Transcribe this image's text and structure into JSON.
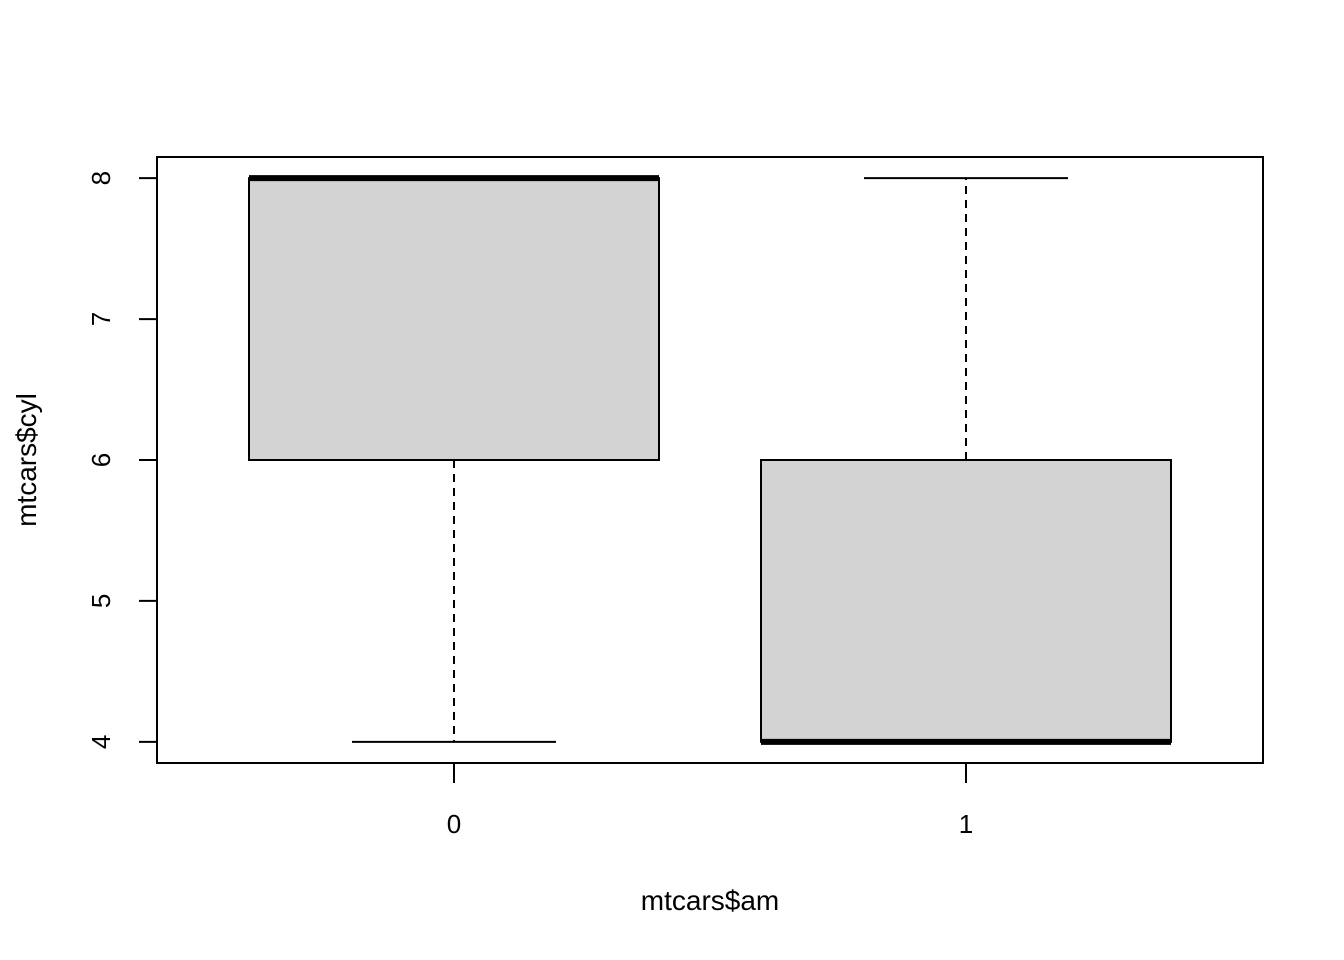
{
  "chart_data": {
    "type": "box",
    "xlabel": "mtcars$am",
    "ylabel": "mtcars$cyl",
    "ylim": [
      3.85,
      8.15
    ],
    "y_ticks": [
      4,
      5,
      6,
      7,
      8
    ],
    "y_tick_labels": [
      "4",
      "5",
      "6",
      "7",
      "8"
    ],
    "categories": [
      "0",
      "1"
    ],
    "boxes": [
      {
        "category": "0",
        "whisker_low": 4,
        "q1": 6,
        "median": 8,
        "q3": 8,
        "whisker_high": 8
      },
      {
        "category": "1",
        "whisker_low": 4,
        "q1": 4,
        "median": 4,
        "q3": 6,
        "whisker_high": 8
      }
    ],
    "box_fill": "#d3d3d3",
    "line_color": "#000000",
    "grid": false,
    "legend": "none"
  }
}
